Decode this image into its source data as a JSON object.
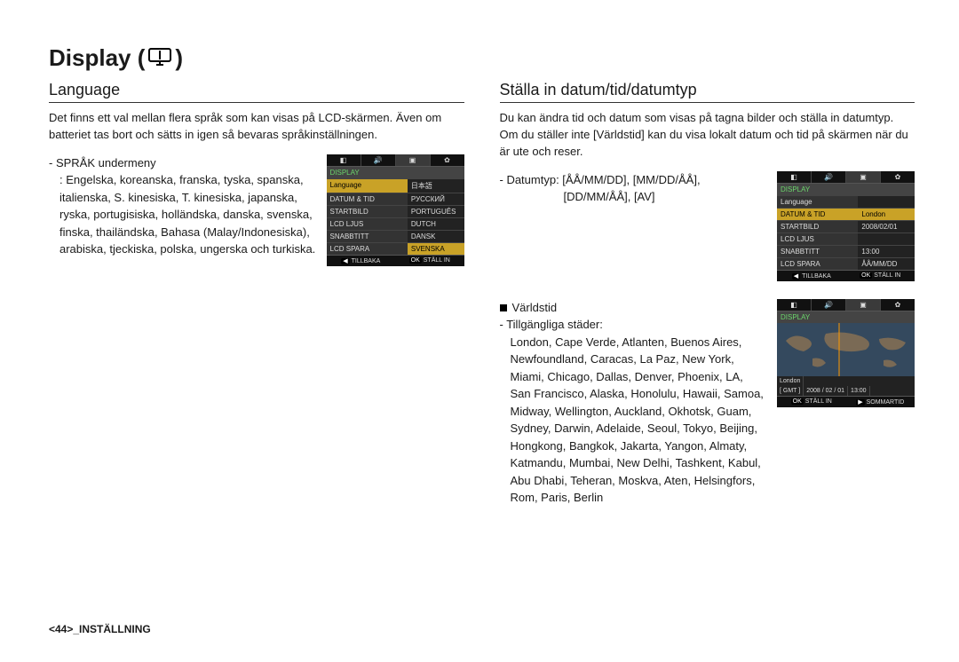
{
  "title": {
    "text_before": "Display (",
    "text_after": ")"
  },
  "left": {
    "heading": "Language",
    "intro": "Det finns ett val mellan flera språk som kan visas på LCD-skärmen. Även om batteriet tas bort och sätts in igen så bevaras språkinställningen.",
    "submenu_label": "- SPRÅK undermeny",
    "submenu_body": ": Engelska, koreanska, franska, tyska, spanska, italienska, S. kinesiska, T. kinesiska, japanska, ryska, portugisiska, holländska, danska, svenska, finska, thailändska, Bahasa (Malay/Indonesiska), arabiska, tjeckiska, polska, ungerska och turkiska.",
    "cam": {
      "header": "DISPLAY",
      "rows": [
        {
          "left": "Language",
          "right": "日本語",
          "left_sel": true,
          "right_sel": false
        },
        {
          "left": "DATUM & TID",
          "right": "РУССКИЙ",
          "left_sel": false,
          "right_sel": false
        },
        {
          "left": "STARTBILD",
          "right": "PORTUGUÊS",
          "left_sel": false,
          "right_sel": false
        },
        {
          "left": "LCD LJUS",
          "right": "DUTCH",
          "left_sel": false,
          "right_sel": false
        },
        {
          "left": "SNABBTITT",
          "right": "DANSK",
          "left_sel": false,
          "right_sel": false
        },
        {
          "left": "LCD SPARA",
          "right": "SVENSKA",
          "left_sel": false,
          "right_sel": true
        }
      ],
      "footer_back": "TILLBAKA",
      "footer_ok": "STÄLL IN"
    }
  },
  "right": {
    "heading": "Ställa in datum/tid/datumtyp",
    "intro": "Du kan ändra tid och datum som visas på tagna bilder och ställa in datumtyp. Om du ställer inte [Världstid] kan du visa lokalt datum och tid på skärmen när du är ute och reser.",
    "datetype_line1": "- Datumtyp: [ÅÅ/MM/DD], [MM/DD/ÅÅ],",
    "datetype_line2": "[DD/MM/ÅÅ], [AV]",
    "cam1": {
      "header": "DISPLAY",
      "rows": [
        {
          "left": "Language",
          "right": "",
          "left_sel": false,
          "right_sel": false
        },
        {
          "left": "DATUM & TID",
          "right": "London",
          "left_sel": true,
          "right_sel": true
        },
        {
          "left": "STARTBILD",
          "right": "2008/02/01",
          "left_sel": false,
          "right_sel": false
        },
        {
          "left": "LCD LJUS",
          "right": "",
          "left_sel": false,
          "right_sel": false
        },
        {
          "left": "SNABBTITT",
          "right": "13:00",
          "left_sel": false,
          "right_sel": false
        },
        {
          "left": "LCD SPARA",
          "right": "ÅÅ/MM/DD",
          "left_sel": false,
          "right_sel": false
        }
      ],
      "footer_back": "TILLBAKA",
      "footer_ok": "STÄLL IN"
    },
    "world_heading": "Världstid",
    "cities_label": "- Tillgängliga städer:",
    "cities_body": "London, Cape Verde, Atlanten, Buenos Aires, Newfoundland, Caracas, La Paz, New York, Miami, Chicago, Dallas, Denver, Phoenix, LA, San Francisco, Alaska, Honolulu, Hawaii, Samoa, Midway, Wellington, Auckland, Okhotsk, Guam, Sydney, Darwin, Adelaide, Seoul, Tokyo, Beijing, Hongkong, Bangkok, Jakarta, Yangon, Almaty, Katmandu, Mumbai, New Delhi, Tashkent, Kabul, Abu Dhabi, Teheran, Moskva, Aten, Helsingfors, Rom, Paris, Berlin",
    "cam2": {
      "header": "DISPLAY",
      "city": "London",
      "gmt": "[ GMT ]",
      "date": "2008 / 02 / 01",
      "time": "13:00",
      "ok": "STÄLL IN",
      "dst": "SOMMARTID"
    }
  },
  "footer": "<44>_INSTÄLLNING"
}
